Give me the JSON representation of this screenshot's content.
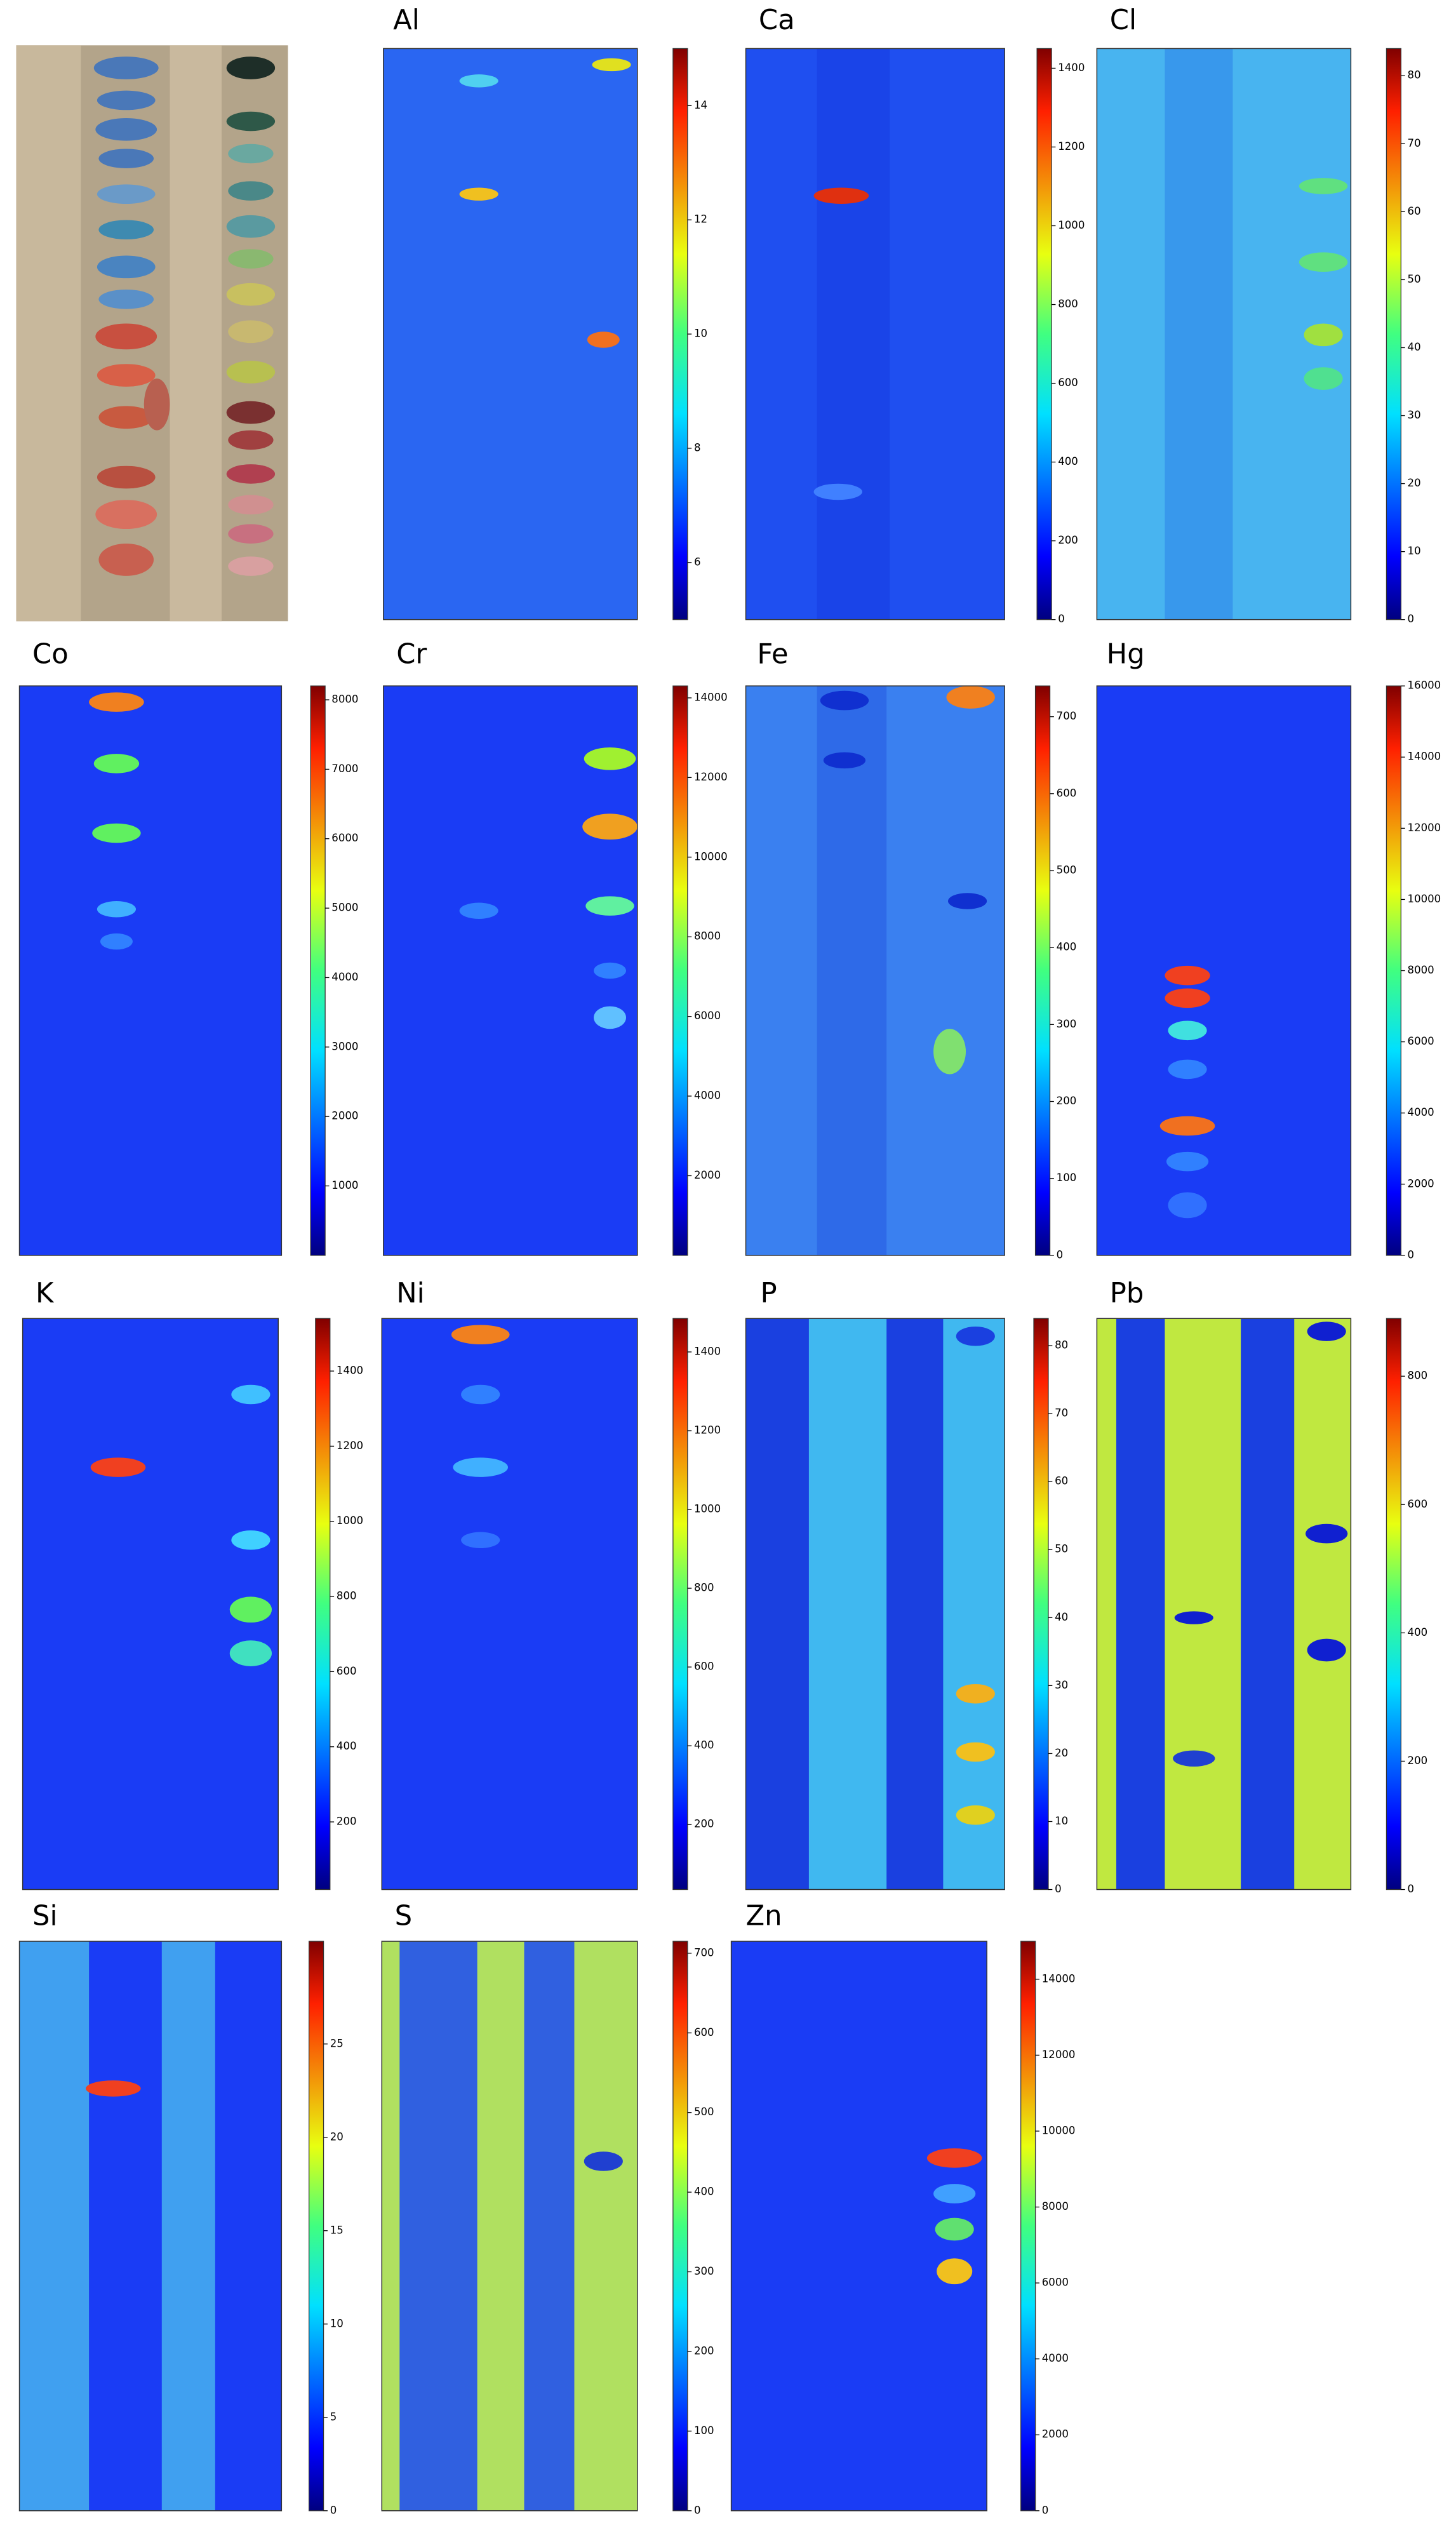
{
  "chart_data": [
    {
      "type": "heatmap",
      "title": "Al",
      "clim": [
        5,
        15
      ],
      "cticks": [
        6,
        8,
        10,
        12,
        14
      ]
    },
    {
      "type": "heatmap",
      "title": "Ca",
      "clim": [
        0,
        1450
      ],
      "cticks": [
        0,
        200,
        400,
        600,
        800,
        1000,
        1200,
        1400
      ]
    },
    {
      "type": "heatmap",
      "title": "Cl",
      "clim": [
        0,
        84
      ],
      "cticks": [
        0,
        10,
        20,
        30,
        40,
        50,
        60,
        70,
        80
      ]
    },
    {
      "type": "heatmap",
      "title": "Co",
      "clim": [
        0,
        8200
      ],
      "cticks": [
        1000,
        2000,
        3000,
        4000,
        5000,
        6000,
        7000,
        8000
      ]
    },
    {
      "type": "heatmap",
      "title": "Cr",
      "clim": [
        0,
        14300
      ],
      "cticks": [
        2000,
        4000,
        6000,
        8000,
        10000,
        12000,
        14000
      ]
    },
    {
      "type": "heatmap",
      "title": "Fe",
      "clim": [
        0,
        740
      ],
      "cticks": [
        0,
        100,
        200,
        300,
        400,
        500,
        600,
        700
      ]
    },
    {
      "type": "heatmap",
      "title": "Hg",
      "clim": [
        0,
        16000
      ],
      "cticks": [
        0,
        2000,
        4000,
        6000,
        8000,
        10000,
        12000,
        14000,
        16000
      ]
    },
    {
      "type": "heatmap",
      "title": "K",
      "clim": [
        20,
        1540
      ],
      "cticks": [
        200,
        400,
        600,
        800,
        1000,
        1200,
        1400
      ]
    },
    {
      "type": "heatmap",
      "title": "Ni",
      "clim": [
        35,
        1485
      ],
      "cticks": [
        200,
        400,
        600,
        800,
        1000,
        1200,
        1400
      ]
    },
    {
      "type": "heatmap",
      "title": "P",
      "clim": [
        0,
        84
      ],
      "cticks": [
        0,
        10,
        20,
        30,
        40,
        50,
        60,
        70,
        80
      ]
    },
    {
      "type": "heatmap",
      "title": "Pb",
      "clim": [
        0,
        890
      ],
      "cticks": [
        0,
        200,
        400,
        600,
        800
      ]
    },
    {
      "type": "heatmap",
      "title": "Si",
      "clim": [
        0,
        30.5
      ],
      "cticks": [
        0,
        5,
        10,
        15,
        20,
        25
      ]
    },
    {
      "type": "heatmap",
      "title": "S",
      "clim": [
        0,
        715
      ],
      "cticks": [
        0,
        100,
        200,
        300,
        400,
        500,
        600,
        700
      ]
    },
    {
      "type": "heatmap",
      "title": "Zn",
      "clim": [
        0,
        15000
      ],
      "cticks": [
        0,
        2000,
        4000,
        6000,
        8000,
        10000,
        12000,
        14000
      ]
    }
  ]
}
